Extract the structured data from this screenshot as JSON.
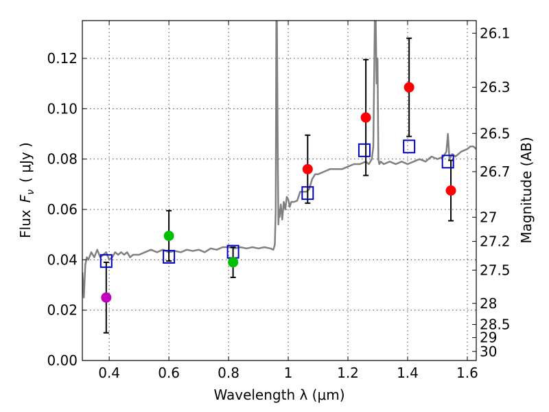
{
  "chart_data": {
    "type": "scatter",
    "xlabel": "Wavelength  λ (μm)",
    "ylabel": "Flux  F_ν  ( μJy )",
    "ylabel_parts": {
      "flux": "Flux",
      "symbol": "F",
      "subscript": "ν",
      "unit": "( μJy )"
    },
    "y2label": "Magnitude (AB)",
    "xlim": [
      0.31,
      1.63
    ],
    "ylim": [
      0.0,
      0.135
    ],
    "grid": true,
    "xticks": [
      0.4,
      0.6,
      0.8,
      1.0,
      1.2,
      1.4,
      1.6
    ],
    "xtick_labels": [
      "0.4",
      "0.6",
      "0.8",
      "1",
      "1.2",
      "1.4",
      "1.6"
    ],
    "yticks": [
      0.0,
      0.02,
      0.04,
      0.06,
      0.08,
      0.1,
      0.12
    ],
    "ytick_labels": [
      "0.00",
      "0.02",
      "0.04",
      "0.06",
      "0.08",
      "0.10",
      "0.12"
    ],
    "y2ticks": [
      {
        "label": "26.1",
        "flux": 0.13
      },
      {
        "label": "26.3",
        "flux": 0.1085
      },
      {
        "label": "26.5",
        "flux": 0.0902
      },
      {
        "label": "26.7",
        "flux": 0.075
      },
      {
        "label": "27",
        "flux": 0.0569
      },
      {
        "label": "27.2",
        "flux": 0.0473
      },
      {
        "label": "27.5",
        "flux": 0.0359
      },
      {
        "label": "28",
        "flux": 0.0227
      },
      {
        "label": "28.5",
        "flux": 0.0143
      },
      {
        "label": "29",
        "flux": 0.0091
      },
      {
        "label": "30",
        "flux": 0.0036
      }
    ],
    "series": [
      {
        "name": "model-spectrum",
        "kind": "line",
        "color": "#808080",
        "x": [
          0.31,
          0.315,
          0.32,
          0.325,
          0.33,
          0.34,
          0.35,
          0.36,
          0.37,
          0.38,
          0.39,
          0.4,
          0.41,
          0.42,
          0.43,
          0.44,
          0.45,
          0.46,
          0.47,
          0.48,
          0.49,
          0.5,
          0.52,
          0.54,
          0.56,
          0.58,
          0.6,
          0.62,
          0.64,
          0.66,
          0.68,
          0.7,
          0.72,
          0.74,
          0.76,
          0.78,
          0.8,
          0.82,
          0.84,
          0.86,
          0.88,
          0.9,
          0.92,
          0.94,
          0.95,
          0.955,
          0.958,
          0.96,
          0.962,
          0.965,
          0.967,
          0.969,
          0.971,
          0.975,
          0.98,
          0.985,
          0.99,
          0.995,
          1.0,
          1.005,
          1.01,
          1.02,
          1.03,
          1.04,
          1.05,
          1.06,
          1.07,
          1.08,
          1.09,
          1.1,
          1.12,
          1.14,
          1.16,
          1.18,
          1.2,
          1.22,
          1.24,
          1.26,
          1.27,
          1.28,
          1.285,
          1.29,
          1.293,
          1.296,
          1.299,
          1.302,
          1.305,
          1.31,
          1.32,
          1.34,
          1.36,
          1.38,
          1.4,
          1.42,
          1.44,
          1.46,
          1.48,
          1.5,
          1.52,
          1.53,
          1.535,
          1.54,
          1.55,
          1.56,
          1.58,
          1.6,
          1.61,
          1.62,
          1.63
        ],
        "y": [
          0.035,
          0.025,
          0.038,
          0.041,
          0.04,
          0.043,
          0.041,
          0.044,
          0.041,
          0.042,
          0.043,
          0.04,
          0.041,
          0.043,
          0.042,
          0.043,
          0.042,
          0.043,
          0.041,
          0.042,
          0.042,
          0.042,
          0.043,
          0.044,
          0.043,
          0.044,
          0.043,
          0.0435,
          0.043,
          0.044,
          0.0435,
          0.044,
          0.043,
          0.0445,
          0.044,
          0.045,
          0.045,
          0.0445,
          0.045,
          0.0445,
          0.045,
          0.0445,
          0.045,
          0.0445,
          0.044,
          0.046,
          0.06,
          0.135,
          0.135,
          0.08,
          0.054,
          0.06,
          0.057,
          0.062,
          0.056,
          0.063,
          0.06,
          0.065,
          0.064,
          0.061,
          0.063,
          0.063,
          0.0635,
          0.067,
          0.067,
          0.067,
          0.068,
          0.072,
          0.074,
          0.074,
          0.075,
          0.076,
          0.076,
          0.076,
          0.077,
          0.078,
          0.078,
          0.079,
          0.078,
          0.08,
          0.085,
          0.135,
          0.135,
          0.11,
          0.12,
          0.08,
          0.078,
          0.079,
          0.078,
          0.079,
          0.078,
          0.079,
          0.078,
          0.079,
          0.08,
          0.079,
          0.081,
          0.08,
          0.081,
          0.083,
          0.09,
          0.08,
          0.082,
          0.081,
          0.083,
          0.084,
          0.085,
          0.085,
          0.084
        ]
      },
      {
        "name": "model-bandpass",
        "kind": "open-square",
        "color": "#0000cc",
        "x": [
          0.39,
          0.6,
          0.815,
          1.065,
          1.255,
          1.405,
          1.535
        ],
        "y": [
          0.0395,
          0.0412,
          0.0432,
          0.0665,
          0.0835,
          0.085,
          0.079
        ]
      },
      {
        "name": "observed-flux",
        "kind": "points-with-errors",
        "x": [
          0.39,
          0.6,
          0.815,
          1.065,
          1.26,
          1.405,
          1.545
        ],
        "y": [
          0.025,
          0.0495,
          0.039,
          0.076,
          0.0965,
          0.1085,
          0.0675
        ],
        "yerr_low": [
          0.014,
          0.01,
          0.006,
          0.0135,
          0.023,
          0.0195,
          0.012
        ],
        "yerr_high": [
          0.014,
          0.01,
          0.006,
          0.0135,
          0.023,
          0.0195,
          0.012
        ],
        "colors": [
          "#bf00bf",
          "#00bf00",
          "#00bf00",
          "#ff0000",
          "#ff0000",
          "#ff0000",
          "#ff0000"
        ]
      }
    ]
  }
}
